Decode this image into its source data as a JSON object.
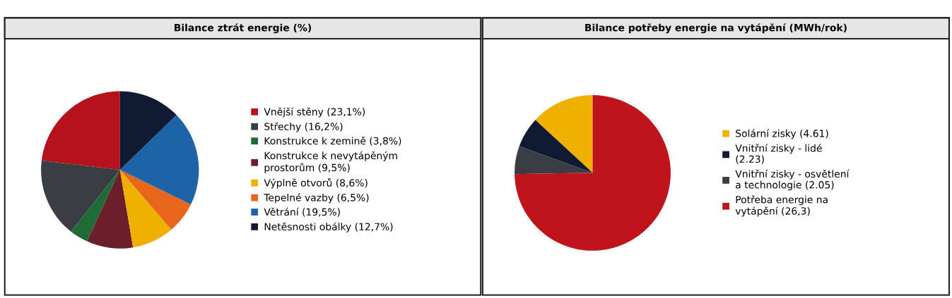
{
  "chart_data": [
    {
      "type": "pie",
      "title": "Bilance ztrát energie (%)",
      "categories": [
        "Vnější stěny (23,1%)",
        "Střechy (16,2%)",
        "Konstrukce k zemině (3,8%)",
        "Konstrukce k nevytápěným prostorům (9,5%)",
        "Výplně otvorů (8,6%)",
        "Tepelné vazby (6,5%)",
        "Větrání (19,5%)",
        "Netěsnosti obálky (12,7%)"
      ],
      "values": [
        23.1,
        16.2,
        3.8,
        9.5,
        8.6,
        6.5,
        19.5,
        12.7
      ],
      "colors": [
        "#b5121b",
        "#3a3d44",
        "#1f6b35",
        "#6b1f2a",
        "#f0b000",
        "#e8661c",
        "#1d63a8",
        "#0f1a33"
      ],
      "legend": "right"
    },
    {
      "type": "pie",
      "title": "Bilance potřeby energie na vytápění (MWh/rok)",
      "categories": [
        "Solární zisky (4.61)",
        "Vnitřní zisky - lidé (2.23)",
        "Vnitřní zisky - osvětlení a technologie (2.05)",
        "Potřeba energie na vytápění (26,3)"
      ],
      "values": [
        4.61,
        2.23,
        2.05,
        26.3
      ],
      "colors": [
        "#f0b000",
        "#0f1a33",
        "#3a3d44",
        "#c0141c"
      ],
      "legend": "right"
    }
  ]
}
